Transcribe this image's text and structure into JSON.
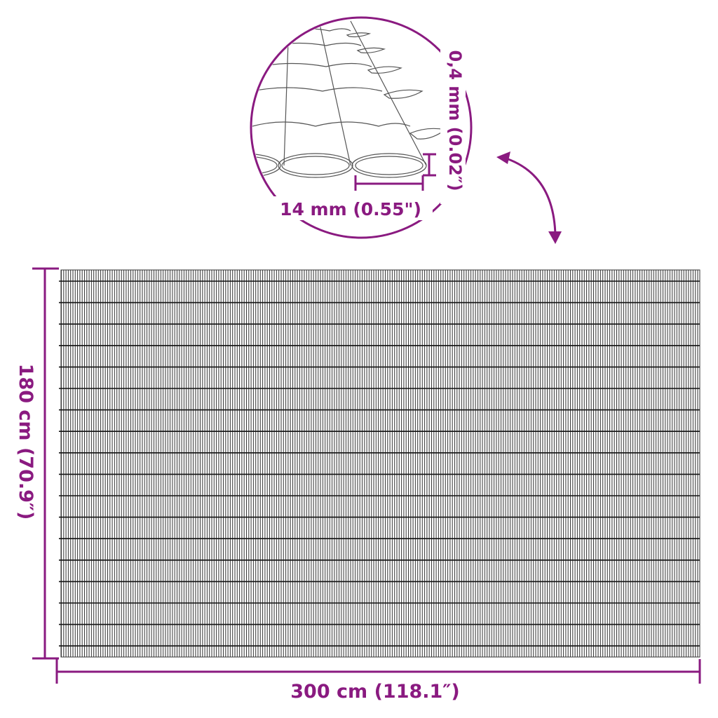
{
  "colors": {
    "accent": "#8a1a80",
    "line": "#222222"
  },
  "detail": {
    "thickness_label": "0,4 mm (0.02″)",
    "width_label": "14 mm (0.55\")"
  },
  "dimensions": {
    "height_label": "180 cm (70.9″)",
    "width_label": "300 cm (118.1″)"
  },
  "icons": {
    "arrow": "curved-double-arrow-icon"
  }
}
